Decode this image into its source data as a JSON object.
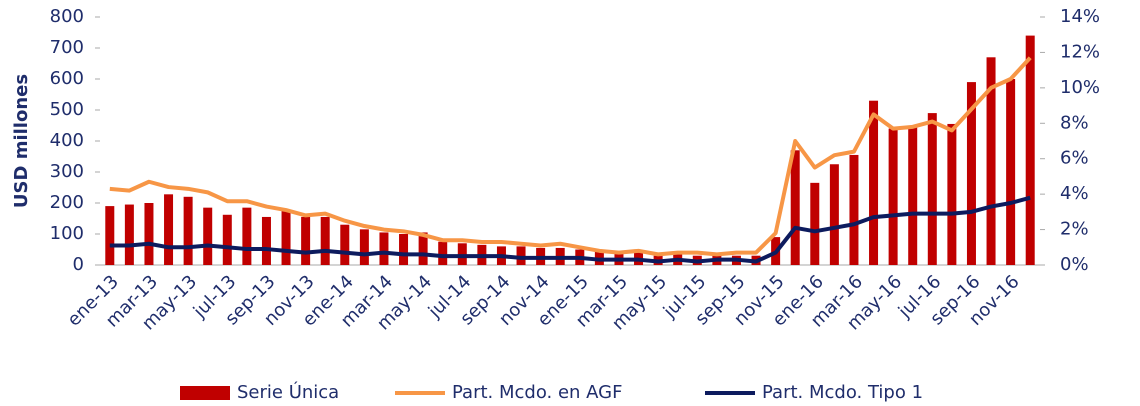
{
  "chart_data": {
    "type": "bar-line",
    "y_label": "USD millones",
    "categories": [
      "ene-13",
      null,
      "mar-13",
      null,
      "may-13",
      null,
      "jul-13",
      null,
      "sep-13",
      null,
      "nov-13",
      null,
      "ene-14",
      null,
      "mar-14",
      null,
      "may-14",
      null,
      "jul-14",
      null,
      "sep-14",
      null,
      "nov-14",
      null,
      "ene-15",
      null,
      "mar-15",
      null,
      "may-15",
      null,
      "jul-15",
      null,
      "sep-15",
      null,
      "nov-15",
      null,
      "ene-16",
      null,
      "mar-16",
      null,
      "may-16",
      null,
      "jul-16",
      null,
      "sep-16",
      null,
      "nov-16",
      null
    ],
    "series": [
      {
        "name": "Serie Única",
        "type": "bar",
        "color": "#c00000",
        "values": [
          190,
          195,
          200,
          228,
          220,
          185,
          162,
          185,
          155,
          175,
          155,
          155,
          130,
          115,
          105,
          100,
          105,
          75,
          70,
          65,
          60,
          60,
          55,
          55,
          50,
          45,
          40,
          40,
          30,
          35,
          30,
          30,
          30,
          30,
          90,
          370,
          265,
          325,
          355,
          530,
          440,
          450,
          490,
          455,
          590,
          670,
          600,
          740
        ]
      },
      {
        "name": "Part. Mcdo. en AGF",
        "type": "line",
        "axis": "y2",
        "color": "#f79646",
        "values": [
          4.3,
          4.2,
          4.7,
          4.4,
          4.3,
          4.1,
          3.6,
          3.6,
          3.3,
          3.1,
          2.8,
          2.9,
          2.5,
          2.2,
          2.0,
          1.9,
          1.7,
          1.4,
          1.4,
          1.3,
          1.3,
          1.2,
          1.1,
          1.2,
          1.0,
          0.8,
          0.7,
          0.8,
          0.6,
          0.7,
          0.7,
          0.6,
          0.7,
          0.7,
          1.8,
          7.0,
          5.5,
          6.2,
          6.4,
          8.5,
          7.7,
          7.8,
          8.1,
          7.6,
          8.8,
          10.0,
          10.5,
          11.7
        ]
      },
      {
        "name": "Part. Mcdo. Tipo 1",
        "type": "line",
        "axis": "y2",
        "color": "#0d1b5e",
        "values": [
          1.1,
          1.1,
          1.2,
          1.0,
          1.0,
          1.1,
          1.0,
          0.9,
          0.9,
          0.8,
          0.7,
          0.8,
          0.7,
          0.6,
          0.7,
          0.6,
          0.6,
          0.5,
          0.5,
          0.5,
          0.5,
          0.4,
          0.4,
          0.4,
          0.4,
          0.3,
          0.3,
          0.3,
          0.2,
          0.3,
          0.2,
          0.3,
          0.3,
          0.2,
          0.7,
          2.1,
          1.9,
          2.1,
          2.3,
          2.7,
          2.8,
          2.9,
          2.9,
          2.9,
          3.0,
          3.3,
          3.5,
          3.8
        ]
      }
    ],
    "ylim": [
      0,
      800
    ],
    "yticks": [
      0,
      100,
      200,
      300,
      400,
      500,
      600,
      700,
      800
    ],
    "y2lim": [
      0,
      14
    ],
    "y2ticks": [
      {
        "value": 0,
        "label": "0%"
      },
      {
        "value": 2,
        "label": "2%"
      },
      {
        "value": 4,
        "label": "4%"
      },
      {
        "value": 6,
        "label": "6%"
      },
      {
        "value": 8,
        "label": "8%"
      },
      {
        "value": 10,
        "label": "10%"
      },
      {
        "value": 12,
        "label": "12%"
      },
      {
        "value": 14,
        "label": "14%"
      }
    ],
    "grid": false,
    "legend": "bottom"
  }
}
